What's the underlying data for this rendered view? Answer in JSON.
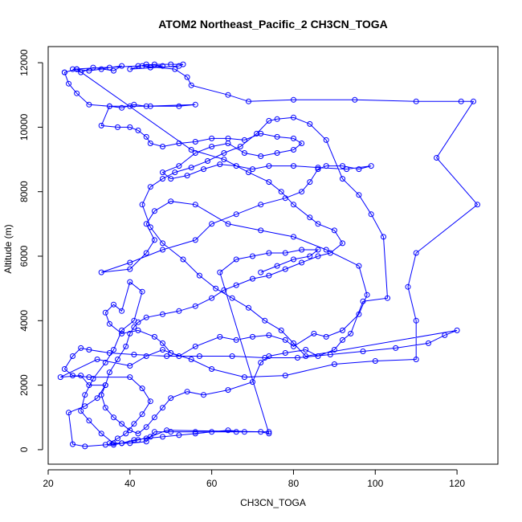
{
  "chart_data": {
    "type": "scatter",
    "connected": true,
    "title": "ATOM2 Northeast_Pacific_2 CH3CN_TOGA",
    "xlabel": "CH3CN_TOGA",
    "ylabel": "Altitude (m)",
    "xlim": [
      20,
      130
    ],
    "ylim": [
      -450,
      12500
    ],
    "x_ticks": [
      20,
      40,
      60,
      80,
      100,
      120
    ],
    "y_ticks": [
      0,
      2000,
      4000,
      6000,
      8000,
      10000,
      12000
    ],
    "grid": false,
    "color": "#0000ff",
    "series": [
      {
        "points": [
          [
            24,
            11700
          ],
          [
            27,
            11800
          ],
          [
            30,
            11750
          ],
          [
            33,
            11800
          ],
          [
            35,
            11850
          ],
          [
            38,
            11900
          ],
          [
            36,
            11750
          ],
          [
            31,
            11850
          ],
          [
            28,
            11700
          ],
          [
            26,
            11800
          ],
          [
            42,
            11900
          ],
          [
            46,
            11950
          ],
          [
            50,
            11950
          ],
          [
            53,
            11950
          ],
          [
            52,
            11900
          ],
          [
            40,
            11800
          ],
          [
            44,
            11950
          ],
          [
            48,
            11900
          ],
          [
            45,
            11850
          ],
          [
            43,
            11900
          ],
          [
            51,
            11800
          ],
          [
            54,
            11550
          ],
          [
            55,
            11300
          ],
          [
            64,
            11000
          ],
          [
            69,
            10800
          ],
          [
            80,
            10850
          ],
          [
            95,
            10850
          ],
          [
            110,
            10800
          ],
          [
            121,
            10800
          ],
          [
            124,
            10800
          ],
          [
            115,
            9050
          ],
          [
            125,
            7600
          ],
          [
            110,
            6100
          ],
          [
            108,
            5050
          ],
          [
            110,
            4000
          ],
          [
            110,
            2800
          ],
          [
            100,
            2750
          ],
          [
            90,
            2650
          ],
          [
            78,
            2300
          ],
          [
            68,
            2250
          ],
          [
            60,
            2500
          ],
          [
            55,
            2800
          ],
          [
            50,
            3000
          ],
          [
            48,
            3300
          ],
          [
            46,
            3500
          ],
          [
            42,
            3700
          ],
          [
            38,
            3600
          ],
          [
            35,
            3900
          ],
          [
            34,
            4250
          ],
          [
            36,
            4500
          ],
          [
            38,
            4300
          ],
          [
            40,
            5200
          ],
          [
            43,
            4900
          ],
          [
            41,
            4000
          ],
          [
            38,
            3700
          ],
          [
            36,
            3100
          ],
          [
            34,
            2700
          ],
          [
            31,
            2200
          ],
          [
            29,
            1700
          ],
          [
            28,
            1200
          ],
          [
            30,
            900
          ],
          [
            33,
            500
          ],
          [
            36,
            200
          ],
          [
            40,
            200
          ],
          [
            44,
            250
          ],
          [
            46,
            550
          ],
          [
            50,
            550
          ],
          [
            56,
            550
          ],
          [
            66,
            550
          ],
          [
            74,
            550
          ],
          [
            49,
            600
          ],
          [
            45,
            400
          ],
          [
            42,
            300
          ],
          [
            38,
            200
          ],
          [
            34,
            150
          ],
          [
            29,
            100
          ],
          [
            26,
            170
          ],
          [
            25,
            1150
          ],
          [
            29,
            1350
          ],
          [
            32,
            1600
          ],
          [
            34,
            2000
          ],
          [
            30,
            2000
          ],
          [
            28,
            2300
          ],
          [
            23,
            2250
          ],
          [
            32,
            2800
          ],
          [
            40,
            2600
          ],
          [
            44,
            2900
          ],
          [
            48,
            3100
          ],
          [
            52,
            2900
          ],
          [
            56,
            3200
          ],
          [
            62,
            3500
          ],
          [
            66,
            3400
          ],
          [
            70,
            3500
          ],
          [
            74,
            3550
          ],
          [
            78,
            3400
          ],
          [
            80,
            3200
          ],
          [
            85,
            3600
          ],
          [
            88,
            3500
          ],
          [
            92,
            3700
          ],
          [
            96,
            4200
          ],
          [
            98,
            4800
          ],
          [
            96,
            5700
          ],
          [
            88,
            6200
          ],
          [
            80,
            6600
          ],
          [
            72,
            6800
          ],
          [
            64,
            7000
          ],
          [
            56,
            7600
          ],
          [
            50,
            7700
          ],
          [
            46,
            7400
          ],
          [
            44,
            7000
          ],
          [
            46,
            6500
          ],
          [
            44,
            6100
          ],
          [
            40,
            5600
          ],
          [
            33,
            5500
          ],
          [
            40,
            5800
          ],
          [
            48,
            6200
          ],
          [
            56,
            6500
          ],
          [
            60,
            7000
          ],
          [
            66,
            7300
          ],
          [
            72,
            7600
          ],
          [
            78,
            7800
          ],
          [
            82,
            8000
          ],
          [
            84,
            8300
          ],
          [
            86,
            8700
          ],
          [
            88,
            8800
          ],
          [
            92,
            8800
          ],
          [
            96,
            8700
          ],
          [
            99,
            8800
          ],
          [
            93,
            8700
          ],
          [
            86,
            8750
          ],
          [
            80,
            8800
          ],
          [
            74,
            8800
          ],
          [
            70,
            8700
          ],
          [
            66,
            8800
          ],
          [
            62,
            8850
          ],
          [
            58,
            8700
          ],
          [
            54,
            8500
          ],
          [
            50,
            8400
          ],
          [
            48,
            8600
          ],
          [
            52,
            8800
          ],
          [
            56,
            9200
          ],
          [
            60,
            9400
          ],
          [
            64,
            9500
          ],
          [
            68,
            9200
          ],
          [
            72,
            9100
          ],
          [
            76,
            9200
          ],
          [
            80,
            9300
          ],
          [
            82,
            9500
          ],
          [
            80,
            9650
          ],
          [
            76,
            9700
          ],
          [
            72,
            9800
          ],
          [
            68,
            9600
          ],
          [
            64,
            9650
          ],
          [
            60,
            9650
          ],
          [
            56,
            9550
          ],
          [
            52,
            9500
          ],
          [
            48,
            9400
          ],
          [
            45,
            9500
          ],
          [
            44,
            9700
          ],
          [
            42,
            9900
          ],
          [
            40,
            10000
          ],
          [
            37,
            10000
          ],
          [
            33,
            10050
          ],
          [
            35,
            10650
          ],
          [
            40,
            10650
          ],
          [
            45,
            10650
          ],
          [
            52,
            10650
          ],
          [
            56,
            10700
          ],
          [
            44,
            10650
          ],
          [
            41,
            10700
          ],
          [
            38,
            10600
          ],
          [
            35,
            10650
          ],
          [
            30,
            10700
          ],
          [
            27,
            11050
          ],
          [
            25,
            11350
          ],
          [
            24,
            11700
          ],
          [
            27,
            11800
          ],
          [
            55,
            9300
          ],
          [
            63,
            9000
          ],
          [
            69,
            8600
          ],
          [
            74,
            8300
          ],
          [
            77,
            8000
          ],
          [
            80,
            7600
          ],
          [
            84,
            7200
          ],
          [
            86,
            7000
          ],
          [
            90,
            6800
          ],
          [
            92,
            6400
          ],
          [
            89,
            6100
          ],
          [
            86,
            6000
          ],
          [
            82,
            5800
          ],
          [
            78,
            5600
          ],
          [
            74,
            5400
          ],
          [
            70,
            5300
          ],
          [
            66,
            5100
          ],
          [
            63,
            4950
          ],
          [
            60,
            4700
          ],
          [
            56,
            4450
          ],
          [
            52,
            4300
          ],
          [
            48,
            4200
          ],
          [
            44,
            4100
          ],
          [
            42,
            3950
          ],
          [
            41,
            3800
          ],
          [
            40,
            3600
          ],
          [
            39,
            3200
          ],
          [
            37,
            2800
          ],
          [
            35,
            2400
          ],
          [
            34,
            2000
          ],
          [
            33,
            1700
          ],
          [
            34,
            1300
          ],
          [
            36,
            1000
          ],
          [
            38,
            800
          ],
          [
            40,
            600
          ],
          [
            42,
            500
          ],
          [
            44,
            700
          ],
          [
            46,
            1000
          ],
          [
            48,
            1300
          ],
          [
            50,
            1600
          ],
          [
            54,
            1800
          ],
          [
            58,
            1700
          ],
          [
            64,
            1850
          ],
          [
            70,
            2100
          ],
          [
            72,
            2700
          ],
          [
            74,
            2900
          ],
          [
            78,
            3000
          ],
          [
            83,
            3100
          ],
          [
            86,
            2900
          ],
          [
            90,
            3100
          ],
          [
            92,
            3400
          ],
          [
            94,
            3600
          ],
          [
            97,
            4600
          ],
          [
            103,
            4700
          ],
          [
            102,
            6600
          ],
          [
            99,
            7300
          ],
          [
            96,
            7900
          ],
          [
            92,
            8400
          ],
          [
            88,
            9600
          ],
          [
            84,
            10100
          ],
          [
            80,
            10300
          ],
          [
            76,
            10250
          ],
          [
            74,
            10200
          ],
          [
            71,
            9800
          ],
          [
            67,
            9400
          ],
          [
            63,
            9200
          ],
          [
            59,
            8950
          ],
          [
            55,
            8750
          ],
          [
            51,
            8600
          ],
          [
            48,
            8400
          ],
          [
            45,
            8150
          ],
          [
            43,
            7600
          ],
          [
            45,
            6900
          ],
          [
            48,
            6400
          ],
          [
            53,
            5900
          ],
          [
            57,
            5400
          ],
          [
            61,
            5000
          ],
          [
            65,
            4700
          ],
          [
            69,
            4400
          ],
          [
            73,
            4000
          ],
          [
            77,
            3700
          ],
          [
            80,
            3300
          ],
          [
            83,
            2900
          ],
          [
            120,
            3700
          ],
          [
            117,
            3550
          ],
          [
            113,
            3300
          ],
          [
            105,
            3150
          ],
          [
            97,
            3050
          ],
          [
            89,
            2950
          ],
          [
            81,
            2850
          ],
          [
            73,
            2850
          ],
          [
            65,
            2900
          ],
          [
            57,
            2900
          ],
          [
            49,
            2900
          ],
          [
            41,
            2950
          ],
          [
            35,
            3000
          ],
          [
            30,
            3100
          ],
          [
            28,
            3150
          ],
          [
            26,
            2900
          ],
          [
            24,
            2500
          ],
          [
            26,
            2300
          ],
          [
            30,
            2250
          ],
          [
            40,
            2250
          ],
          [
            43,
            1900
          ],
          [
            45,
            1500
          ],
          [
            43,
            1100
          ],
          [
            41,
            800
          ],
          [
            39,
            500
          ],
          [
            37,
            350
          ],
          [
            35,
            200
          ],
          [
            36,
            150
          ],
          [
            38,
            200
          ],
          [
            41,
            300
          ],
          [
            44,
            350
          ],
          [
            48,
            400
          ],
          [
            52,
            450
          ],
          [
            56,
            500
          ],
          [
            60,
            550
          ],
          [
            64,
            600
          ],
          [
            68,
            550
          ],
          [
            72,
            550
          ],
          [
            74,
            500
          ],
          [
            62,
            5500
          ],
          [
            66,
            5900
          ],
          [
            70,
            6000
          ],
          [
            74,
            6100
          ],
          [
            78,
            6100
          ],
          [
            82,
            6200
          ],
          [
            86,
            6200
          ],
          [
            84,
            6000
          ],
          [
            80,
            5900
          ],
          [
            76,
            5700
          ],
          [
            72,
            5500
          ]
        ]
      }
    ]
  }
}
